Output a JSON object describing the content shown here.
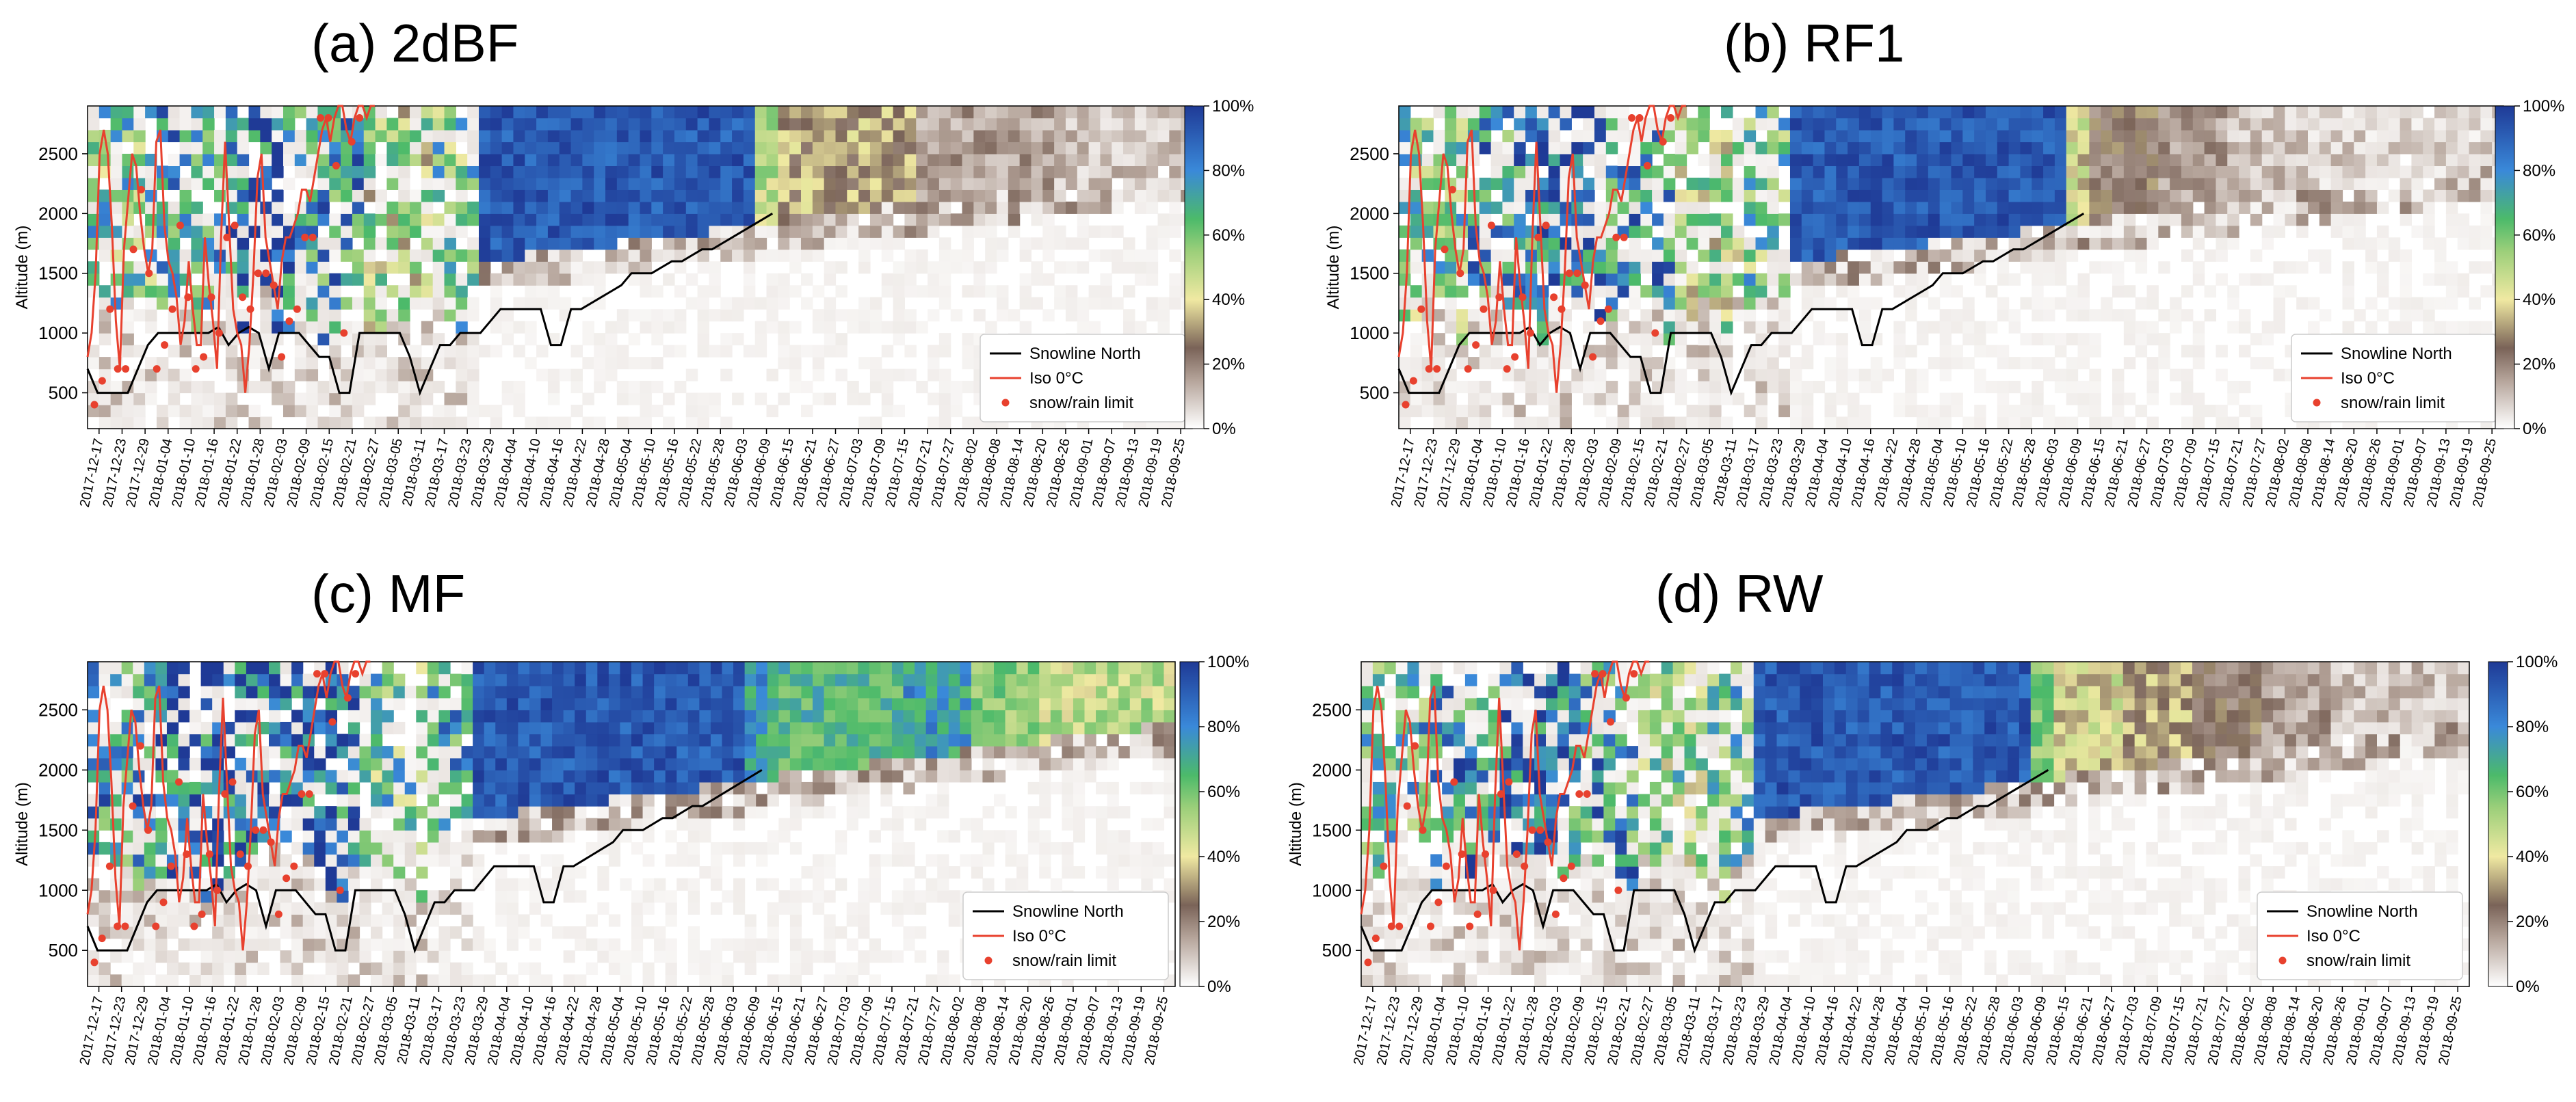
{
  "chart_data": [
    {
      "type": "heatmap",
      "title": "(a)  2dBF",
      "ylabel": "Altitude (m)",
      "ylim": [
        200,
        2900
      ],
      "yticks": [
        500,
        1000,
        1500,
        2000,
        2500
      ],
      "legend": [
        {
          "label": "Snowline North",
          "color": "#000000",
          "kind": "line"
        },
        {
          "label": "Iso 0°C",
          "color": "#e8412e",
          "kind": "line"
        },
        {
          "label": "snow/rain limit",
          "color": "#e8412e",
          "kind": "dot"
        }
      ],
      "colorbar": {
        "ticks": [
          "0%",
          "20%",
          "40%",
          "60%",
          "80%",
          "100%"
        ]
      },
      "fill_profile": [
        0.5,
        0.6,
        0.7,
        0.6,
        0.4,
        0.5,
        0.4,
        0.3,
        0.4,
        0.3,
        0.2,
        0.2,
        0.1,
        0.1,
        0.05,
        0.05
      ]
    },
    {
      "type": "heatmap",
      "title": "(b) RF1",
      "ylabel": "Altitude (m)",
      "ylim": [
        200,
        2900
      ],
      "yticks": [
        500,
        1000,
        1500,
        2000,
        2500
      ],
      "legend": [
        {
          "label": "Snowline North",
          "color": "#000000",
          "kind": "line"
        },
        {
          "label": "Iso 0°C",
          "color": "#e8412e",
          "kind": "line"
        },
        {
          "label": "snow/rain limit",
          "color": "#e8412e",
          "kind": "dot"
        }
      ],
      "colorbar": {
        "ticks": [
          "0%",
          "20%",
          "40%",
          "60%",
          "80%",
          "100%"
        ]
      },
      "fill_profile": [
        0.5,
        0.6,
        0.7,
        0.6,
        0.4,
        0.5,
        0.4,
        0.3,
        0.3,
        0.25,
        0.15,
        0.1,
        0.05,
        0.03,
        0.02,
        0.02
      ]
    },
    {
      "type": "heatmap",
      "title": "(c)  MF",
      "ylabel": "Altitude (m)",
      "ylim": [
        200,
        2900
      ],
      "yticks": [
        500,
        1000,
        1500,
        2000,
        2500
      ],
      "legend": [
        {
          "label": "Snowline North",
          "color": "#000000",
          "kind": "line"
        },
        {
          "label": "Iso 0°C",
          "color": "#e8412e",
          "kind": "line"
        },
        {
          "label": "snow/rain limit",
          "color": "#e8412e",
          "kind": "dot"
        }
      ],
      "colorbar": {
        "ticks": [
          "0%",
          "20%",
          "40%",
          "60%",
          "80%",
          "100%"
        ]
      },
      "fill_profile": [
        0.6,
        0.7,
        0.7,
        0.7,
        0.5,
        0.6,
        0.5,
        0.45,
        0.5,
        0.45,
        0.4,
        0.4,
        0.45,
        0.35,
        0.3,
        0.3
      ]
    },
    {
      "type": "heatmap",
      "title": "(d)  RW",
      "ylabel": "Altitude (m)",
      "ylim": [
        200,
        2900
      ],
      "yticks": [
        500,
        1000,
        1500,
        2000,
        2500
      ],
      "legend": [
        {
          "label": "Snowline North",
          "color": "#000000",
          "kind": "line"
        },
        {
          "label": "Iso 0°C",
          "color": "#e8412e",
          "kind": "line"
        },
        {
          "label": "snow/rain limit",
          "color": "#e8412e",
          "kind": "dot"
        }
      ],
      "colorbar": {
        "ticks": [
          "0%",
          "20%",
          "40%",
          "60%",
          "80%",
          "100%"
        ]
      },
      "fill_profile": [
        0.55,
        0.65,
        0.7,
        0.6,
        0.45,
        0.55,
        0.45,
        0.35,
        0.4,
        0.35,
        0.25,
        0.2,
        0.15,
        0.1,
        0.05,
        0.05
      ]
    }
  ],
  "x_dates": [
    "2017-12-17",
    "2017-12-23",
    "2017-12-29",
    "2018-01-04",
    "2018-01-10",
    "2018-01-16",
    "2018-01-22",
    "2018-01-28",
    "2018-02-03",
    "2018-02-09",
    "2018-02-15",
    "2018-02-21",
    "2018-02-27",
    "2018-03-05",
    "2018-03-11",
    "2018-03-17",
    "2018-03-23",
    "2018-03-29",
    "2018-04-04",
    "2018-04-10",
    "2018-04-16",
    "2018-04-22",
    "2018-04-28",
    "2018-05-04",
    "2018-05-10",
    "2018-05-16",
    "2018-05-22",
    "2018-05-28",
    "2018-06-03",
    "2018-06-09",
    "2018-06-15",
    "2018-06-21",
    "2018-06-27",
    "2018-07-03",
    "2018-07-09",
    "2018-07-15",
    "2018-07-21",
    "2018-07-27",
    "2018-08-02",
    "2018-08-08",
    "2018-08-14",
    "2018-08-20",
    "2018-08-26",
    "2018-09-01",
    "2018-09-07",
    "2018-09-13",
    "2018-09-19",
    "2018-09-25"
  ],
  "snowline": [
    700,
    500,
    500,
    500,
    500,
    700,
    900,
    1000,
    1000,
    1000,
    1000,
    1000,
    1000,
    1050,
    900,
    1000,
    1050,
    1000,
    700,
    1000,
    1000,
    1000,
    900,
    800,
    800,
    500,
    500,
    1000,
    1000,
    1000,
    1000,
    1000,
    800,
    500,
    700,
    900,
    900,
    1000,
    1000,
    1000,
    1100,
    1200,
    1200,
    1200,
    1200,
    1200,
    900,
    900,
    1200,
    1200,
    1250,
    1300,
    1350,
    1400,
    1500,
    1500,
    1500,
    1550,
    1600,
    1600,
    1650,
    1700,
    1700,
    1750,
    1800,
    1850,
    1900,
    1950,
    2000
  ],
  "isotherm": [
    800,
    1000,
    1500,
    2500,
    2700,
    2500,
    1900,
    1100,
    700,
    1700,
    2100,
    2500,
    2400,
    2000,
    1700,
    1500,
    1700,
    2600,
    2700,
    1900,
    1600,
    1500,
    1300,
    900,
    1100,
    1600,
    1200,
    900,
    900,
    1800,
    1400,
    1100,
    700,
    1800,
    2600,
    1900,
    1200,
    1000,
    900,
    500,
    900,
    1500,
    2300,
    2500,
    1800,
    1600,
    1400,
    1200,
    1600,
    1800,
    1800,
    1900,
    2000,
    2200,
    2200,
    2100,
    2300,
    2500,
    2700,
    2800,
    2600,
    2800,
    2900,
    2900,
    2700,
    2600,
    2800,
    2900,
    2900,
    2800,
    2900,
    2900
  ],
  "rain_limit": [
    400,
    600,
    1200,
    700,
    700,
    1700,
    2200,
    1500,
    700,
    900,
    1200,
    1900,
    1300,
    700,
    800,
    1300,
    1000,
    1800,
    1900,
    1300,
    1200,
    1500,
    1500,
    1400,
    800,
    1100,
    1200,
    1800,
    1800,
    2800,
    2800,
    2400,
    1000,
    2600,
    2800
  ],
  "colors": {
    "line": "#e8412e",
    "snowline": "#000000",
    "panel_bg": "#ffffff"
  }
}
